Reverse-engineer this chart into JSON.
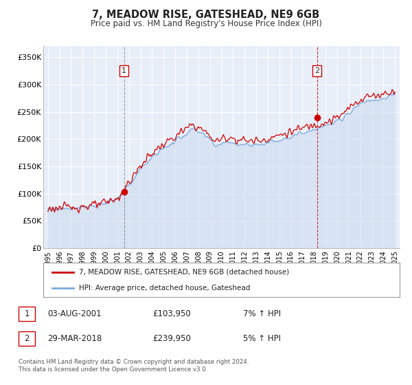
{
  "title": "7, MEADOW RISE, GATESHEAD, NE9 6GB",
  "subtitle": "Price paid vs. HM Land Registry's House Price Index (HPI)",
  "legend_label_red": "7, MEADOW RISE, GATESHEAD, NE9 6GB (detached house)",
  "legend_label_blue": "HPI: Average price, detached house, Gateshead",
  "annotation1_text": "03-AUG-2001",
  "annotation1_price": "£103,950",
  "annotation1_pct": "7% ↑ HPI",
  "annotation2_text": "29-MAR-2018",
  "annotation2_price": "£239,950",
  "annotation2_pct": "5% ↑ HPI",
  "footer1": "Contains HM Land Registry data © Crown copyright and database right 2024.",
  "footer2": "This data is licensed under the Open Government Licence v3.0.",
  "red_color": "#cc0000",
  "blue_color": "#7aaadd",
  "blue_fill_color": "#c8d8f0",
  "dashed1_color": "#888888",
  "dashed2_color": "#cc0000",
  "background_color": "#ffffff",
  "plot_bg_color": "#e8eef8",
  "grid_color": "#ffffff",
  "marker1_x": 2001.583,
  "marker1_y": 103950,
  "marker2_x": 2018.25,
  "marker2_y": 239950,
  "ylim": [
    0,
    370000
  ],
  "yticks": [
    0,
    50000,
    100000,
    150000,
    200000,
    250000,
    300000,
    350000
  ],
  "ytick_labels": [
    "£0",
    "£50K",
    "£100K",
    "£150K",
    "£200K",
    "£250K",
    "£300K",
    "£350K"
  ],
  "xlim_start": 1994.6,
  "xlim_end": 2025.4
}
